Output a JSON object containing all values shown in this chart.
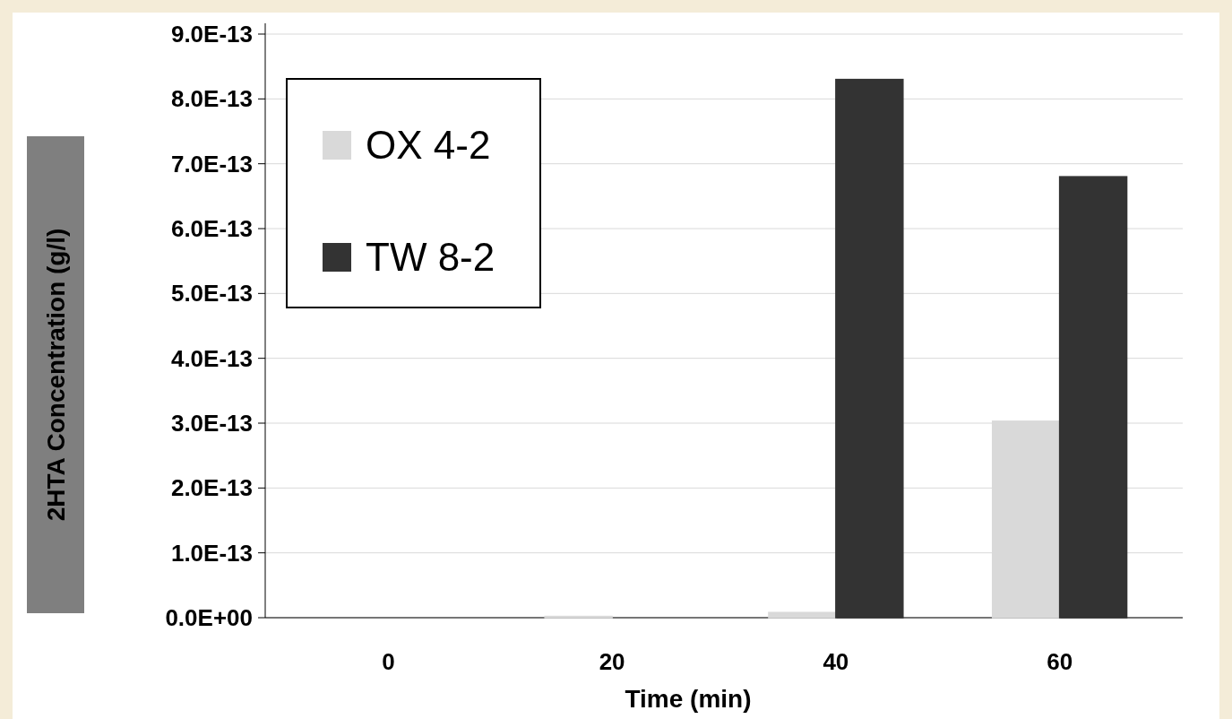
{
  "chart_data": {
    "type": "bar",
    "xlabel": "Time (min)",
    "ylabel": "2HTA Concentration (g/l)",
    "categories": [
      "0",
      "20",
      "40",
      "60"
    ],
    "series": [
      {
        "name": "OX 4-2",
        "color": "#d9d9d9",
        "values": [
          0,
          2e-15,
          8e-15,
          3.03e-13
        ]
      },
      {
        "name": "TW 8-2",
        "color": "#333333",
        "values": [
          0,
          0,
          8.3e-13,
          6.8e-13
        ]
      }
    ],
    "ylim": [
      0,
      9e-13
    ],
    "yticks": [
      {
        "value": 0,
        "label": "0.0E+00"
      },
      {
        "value": 1e-13,
        "label": "1.0E-13"
      },
      {
        "value": 2e-13,
        "label": "2.0E-13"
      },
      {
        "value": 3e-13,
        "label": "3.0E-13"
      },
      {
        "value": 4e-13,
        "label": "4.0E-13"
      },
      {
        "value": 5e-13,
        "label": "5.0E-13"
      },
      {
        "value": 6e-13,
        "label": "6.0E-13"
      },
      {
        "value": 7e-13,
        "label": "7.0E-13"
      },
      {
        "value": 8e-13,
        "label": "8.0E-13"
      },
      {
        "value": 9e-13,
        "label": "9.0E-13"
      }
    ],
    "grid": "y",
    "legend": "top left"
  }
}
